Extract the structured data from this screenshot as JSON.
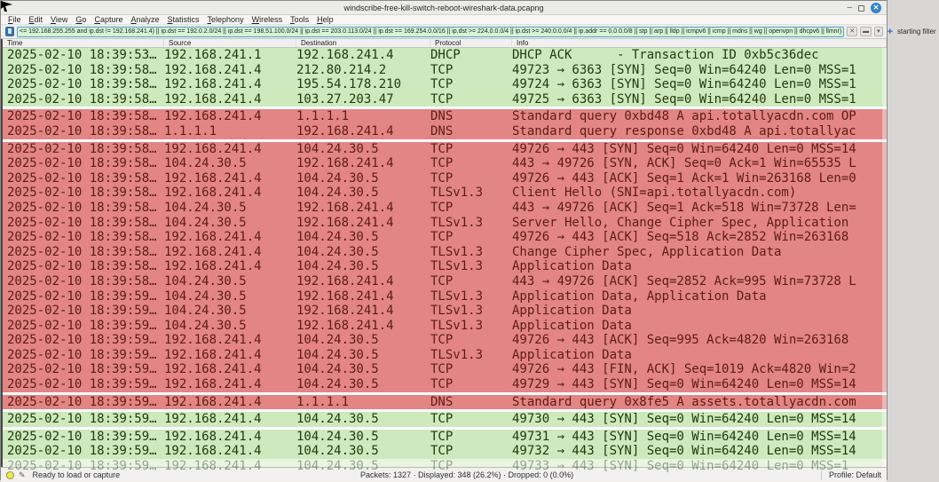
{
  "window": {
    "title": "windscribe-free-kill-switch-reboot-wireshark-data.pcapng",
    "controls": {
      "minimize": "–",
      "maximize": "",
      "close": "✕"
    }
  },
  "menu": {
    "items": [
      "File",
      "Edit",
      "View",
      "Go",
      "Capture",
      "Analyze",
      "Statistics",
      "Telephony",
      "Wireless",
      "Tools",
      "Help"
    ]
  },
  "filter_bar": {
    "filter_text": "<= 192.168.255.255 and ip.dst != 192.168.241.4) || ip.dst == 192.0.2.0/24 || ip.dst == 198.51.100.0/24 || ip.dst == 203.0.113.0/24 || ip.dst == 169.254.0.0/16 || ip.dst >= 224.0.0.0/4 || ip.dst >= 240.0.0.0/4 || ip.addr == 0.0.0.0/8 || stp || arp || lldp || icmpv6 || icmp || mdns || wg || openvpn || dhcpv6 || llmnr)",
    "clear_label": "✕",
    "apply_label": "▬",
    "dropdown_label": "▾",
    "add_label": "+",
    "button_label": "starting filter"
  },
  "columns": [
    {
      "label": "Time"
    },
    {
      "label": "Source"
    },
    {
      "label": "Destination"
    },
    {
      "label": "Protocol"
    },
    {
      "label": "Info"
    }
  ],
  "packets": [
    {
      "time": "2025-02-10 18:39:53…",
      "source": "192.168.241.1",
      "destination": "192.168.241.4",
      "protocol": "DHCP",
      "info": "DHCP ACK      - Transaction ID 0xb5c36dec",
      "color": "green",
      "gap_before": false,
      "partial": false
    },
    {
      "time": "2025-02-10 18:39:58…",
      "source": "192.168.241.4",
      "destination": "212.80.214.2",
      "protocol": "TCP",
      "info": "49723 → 6363 [SYN] Seq=0 Win=64240 Len=0 MSS=1",
      "color": "green",
      "gap_before": false,
      "partial": false
    },
    {
      "time": "2025-02-10 18:39:58…",
      "source": "192.168.241.4",
      "destination": "195.54.178.210",
      "protocol": "TCP",
      "info": "49724 → 6363 [SYN] Seq=0 Win=64240 Len=0 MSS=1",
      "color": "green",
      "gap_before": false,
      "partial": false
    },
    {
      "time": "2025-02-10 18:39:58…",
      "source": "192.168.241.4",
      "destination": "103.27.203.47",
      "protocol": "TCP",
      "info": "49725 → 6363 [SYN] Seq=0 Win=64240 Len=0 MSS=1",
      "color": "green",
      "gap_before": false,
      "partial": false
    },
    {
      "time": "2025-02-10 18:39:58…",
      "source": "192.168.241.4",
      "destination": "1.1.1.1",
      "protocol": "DNS",
      "info": "Standard query 0xbd48 A api.totallyacdn.com OP",
      "color": "red",
      "gap_before": true,
      "partial": false
    },
    {
      "time": "2025-02-10 18:39:58…",
      "source": "1.1.1.1",
      "destination": "192.168.241.4",
      "protocol": "DNS",
      "info": "Standard query response 0xbd48 A api.totallyac",
      "color": "red",
      "gap_before": false,
      "partial": false
    },
    {
      "time": "2025-02-10 18:39:58…",
      "source": "192.168.241.4",
      "destination": "104.24.30.5",
      "protocol": "TCP",
      "info": "49726 → 443 [SYN] Seq=0 Win=64240 Len=0 MSS=14",
      "color": "red",
      "gap_before": true,
      "partial": false
    },
    {
      "time": "2025-02-10 18:39:58…",
      "source": "104.24.30.5",
      "destination": "192.168.241.4",
      "protocol": "TCP",
      "info": "443 → 49726 [SYN, ACK] Seq=0 Ack=1 Win=65535 L",
      "color": "red",
      "gap_before": false,
      "partial": false
    },
    {
      "time": "2025-02-10 18:39:58…",
      "source": "192.168.241.4",
      "destination": "104.24.30.5",
      "protocol": "TCP",
      "info": "49726 → 443 [ACK] Seq=1 Ack=1 Win=263168 Len=0",
      "color": "red",
      "gap_before": false,
      "partial": false
    },
    {
      "time": "2025-02-10 18:39:58…",
      "source": "192.168.241.4",
      "destination": "104.24.30.5",
      "protocol": "TLSv1.3",
      "info": "Client Hello (SNI=api.totallyacdn.com)",
      "color": "red",
      "gap_before": false,
      "partial": false
    },
    {
      "time": "2025-02-10 18:39:58…",
      "source": "104.24.30.5",
      "destination": "192.168.241.4",
      "protocol": "TCP",
      "info": "443 → 49726 [ACK] Seq=1 Ack=518 Win=73728 Len=",
      "color": "red",
      "gap_before": false,
      "partial": false
    },
    {
      "time": "2025-02-10 18:39:58…",
      "source": "104.24.30.5",
      "destination": "192.168.241.4",
      "protocol": "TLSv1.3",
      "info": "Server Hello, Change Cipher Spec, Application ",
      "color": "red",
      "gap_before": false,
      "partial": false
    },
    {
      "time": "2025-02-10 18:39:58…",
      "source": "192.168.241.4",
      "destination": "104.24.30.5",
      "protocol": "TCP",
      "info": "49726 → 443 [ACK] Seq=518 Ack=2852 Win=263168",
      "color": "red",
      "gap_before": false,
      "partial": false
    },
    {
      "time": "2025-02-10 18:39:58…",
      "source": "192.168.241.4",
      "destination": "104.24.30.5",
      "protocol": "TLSv1.3",
      "info": "Change Cipher Spec, Application Data",
      "color": "red",
      "gap_before": false,
      "partial": false
    },
    {
      "time": "2025-02-10 18:39:58…",
      "source": "192.168.241.4",
      "destination": "104.24.30.5",
      "protocol": "TLSv1.3",
      "info": "Application Data",
      "color": "red",
      "gap_before": false,
      "partial": false
    },
    {
      "time": "2025-02-10 18:39:58…",
      "source": "104.24.30.5",
      "destination": "192.168.241.4",
      "protocol": "TCP",
      "info": "443 → 49726 [ACK] Seq=2852 Ack=995 Win=73728 L",
      "color": "red",
      "gap_before": false,
      "partial": false
    },
    {
      "time": "2025-02-10 18:39:59…",
      "source": "104.24.30.5",
      "destination": "192.168.241.4",
      "protocol": "TLSv1.3",
      "info": "Application Data, Application Data",
      "color": "red",
      "gap_before": false,
      "partial": false
    },
    {
      "time": "2025-02-10 18:39:59…",
      "source": "104.24.30.5",
      "destination": "192.168.241.4",
      "protocol": "TLSv1.3",
      "info": "Application Data",
      "color": "red",
      "gap_before": false,
      "partial": false
    },
    {
      "time": "2025-02-10 18:39:59…",
      "source": "104.24.30.5",
      "destination": "192.168.241.4",
      "protocol": "TLSv1.3",
      "info": "Application Data",
      "color": "red",
      "gap_before": false,
      "partial": false
    },
    {
      "time": "2025-02-10 18:39:59…",
      "source": "192.168.241.4",
      "destination": "104.24.30.5",
      "protocol": "TCP",
      "info": "49726 → 443 [ACK] Seq=995 Ack=4820 Win=263168",
      "color": "red",
      "gap_before": false,
      "partial": false
    },
    {
      "time": "2025-02-10 18:39:59…",
      "source": "192.168.241.4",
      "destination": "104.24.30.5",
      "protocol": "TLSv1.3",
      "info": "Application Data",
      "color": "red",
      "gap_before": false,
      "partial": false
    },
    {
      "time": "2025-02-10 18:39:59…",
      "source": "192.168.241.4",
      "destination": "104.24.30.5",
      "protocol": "TCP",
      "info": "49726 → 443 [FIN, ACK] Seq=1019 Ack=4820 Win=2",
      "color": "red",
      "gap_before": false,
      "partial": false
    },
    {
      "time": "2025-02-10 18:39:59…",
      "source": "192.168.241.4",
      "destination": "104.24.30.5",
      "protocol": "TCP",
      "info": "49729 → 443 [SYN] Seq=0 Win=64240 Len=0 MSS=14",
      "color": "red",
      "gap_before": false,
      "partial": false
    },
    {
      "time": "2025-02-10 18:39:59…",
      "source": "192.168.241.4",
      "destination": "1.1.1.1",
      "protocol": "DNS",
      "info": "Standard query 0x8fe5 A assets.totallyacdn.com",
      "color": "red",
      "gap_before": true,
      "partial": false
    },
    {
      "time": "2025-02-10 18:39:59…",
      "source": "192.168.241.4",
      "destination": "104.24.30.5",
      "protocol": "TCP",
      "info": "49730 → 443 [SYN] Seq=0 Win=64240 Len=0 MSS=14",
      "color": "green",
      "gap_before": true,
      "partial": false
    },
    {
      "time": "2025-02-10 18:39:59…",
      "source": "192.168.241.4",
      "destination": "104.24.30.5",
      "protocol": "TCP",
      "info": "49731 → 443 [SYN] Seq=0 Win=64240 Len=0 MSS=14",
      "color": "green",
      "gap_before": true,
      "partial": false
    },
    {
      "time": "2025-02-10 18:39:59…",
      "source": "192.168.241.4",
      "destination": "104.24.30.5",
      "protocol": "TCP",
      "info": "49732 → 443 [SYN] Seq=0 Win=64240 Len=0 MSS=14",
      "color": "green",
      "gap_before": false,
      "partial": false
    },
    {
      "time": "2025-02-10 18:39:59…",
      "source": "192.168.241.4",
      "destination": "104.24.30.5",
      "protocol": "TCP",
      "info": "49733 → 443 [SYN] Seq=0 Win=64240 Len=0 MSS=1",
      "color": "green",
      "gap_before": false,
      "partial": true
    }
  ],
  "status_bar": {
    "ready_text": "Ready to load or capture",
    "stats_text": "Packets: 1327 · Displayed: 348 (26.2%) · Dropped: 0 (0.0%)",
    "profile_text": "Profile: Default"
  },
  "colors": {
    "allowed_row_bg": "#cde9bd",
    "allowed_row_text": "#203c0c",
    "leaked_row_bg": "#e28584",
    "leaked_row_text": "#5f1b17",
    "filter_valid_bg": "#d6f5d0",
    "close_button": "#3584c7"
  }
}
